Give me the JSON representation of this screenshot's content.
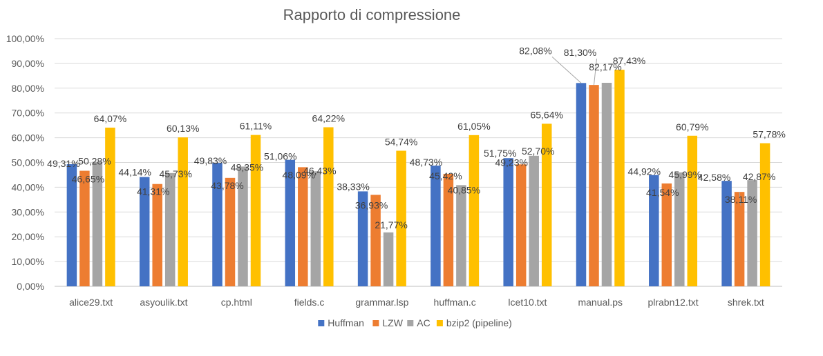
{
  "chart_data": {
    "type": "bar",
    "title": "Rapporto di compressione",
    "xlabel": "",
    "ylabel": "",
    "ylim": [
      0,
      100
    ],
    "y_ticks": [
      0,
      10,
      20,
      30,
      40,
      50,
      60,
      70,
      80,
      90,
      100
    ],
    "y_tick_labels": [
      "0,00%",
      "10,00%",
      "20,00%",
      "30,00%",
      "40,00%",
      "50,00%",
      "60,00%",
      "70,00%",
      "80,00%",
      "90,00%",
      "100,00%"
    ],
    "grid": true,
    "legend_position": "bottom",
    "categories": [
      "alice29.txt",
      "asyoulik.txt",
      "cp.html",
      "fields.c",
      "grammar.lsp",
      "huffman.c",
      "lcet10.txt",
      "manual.ps",
      "plrabn12.txt",
      "shrek.txt"
    ],
    "series": [
      {
        "name": "Huffman",
        "color": "#4472C4",
        "values": [
          49.31,
          44.14,
          49.83,
          51.06,
          38.33,
          48.73,
          51.75,
          82.08,
          44.92,
          42.58
        ],
        "labels": [
          "49,31%",
          "44,14%",
          "49,83%",
          "51,06%",
          "38,33%",
          "48,73%",
          "51,75%",
          "82,08%",
          "44,92%",
          "42,58%"
        ]
      },
      {
        "name": "LZW",
        "color": "#ED7D31",
        "values": [
          46.65,
          41.31,
          43.78,
          48.09,
          36.93,
          45.42,
          49.23,
          81.3,
          41.54,
          38.11
        ],
        "labels": [
          "46,65%",
          "41,31%",
          "43,78%",
          "48,09%",
          "36,93%",
          "45,42%",
          "49,23%",
          "81,30%",
          "41,54%",
          "38,11%"
        ]
      },
      {
        "name": "AC",
        "color": "#A5A5A5",
        "values": [
          50.28,
          45.73,
          48.35,
          46.43,
          21.77,
          40.85,
          52.7,
          82.17,
          45.99,
          42.87
        ],
        "labels": [
          "50,28%",
          "45,73%",
          "48,35%",
          "46,43%",
          "21,77%",
          "40,85%",
          "52,70%",
          "82,17%",
          "45,99%",
          "42,87%"
        ]
      },
      {
        "name": "bzip2 (pipeline)",
        "color": "#FFC000",
        "values": [
          64.07,
          60.13,
          61.11,
          64.22,
          54.74,
          61.05,
          65.64,
          87.43,
          60.79,
          57.78
        ],
        "labels": [
          "64,07%",
          "60,13%",
          "61,11%",
          "64,22%",
          "54,74%",
          "61,05%",
          "65,64%",
          "87,43%",
          "60,79%",
          "57,78%"
        ]
      }
    ]
  }
}
